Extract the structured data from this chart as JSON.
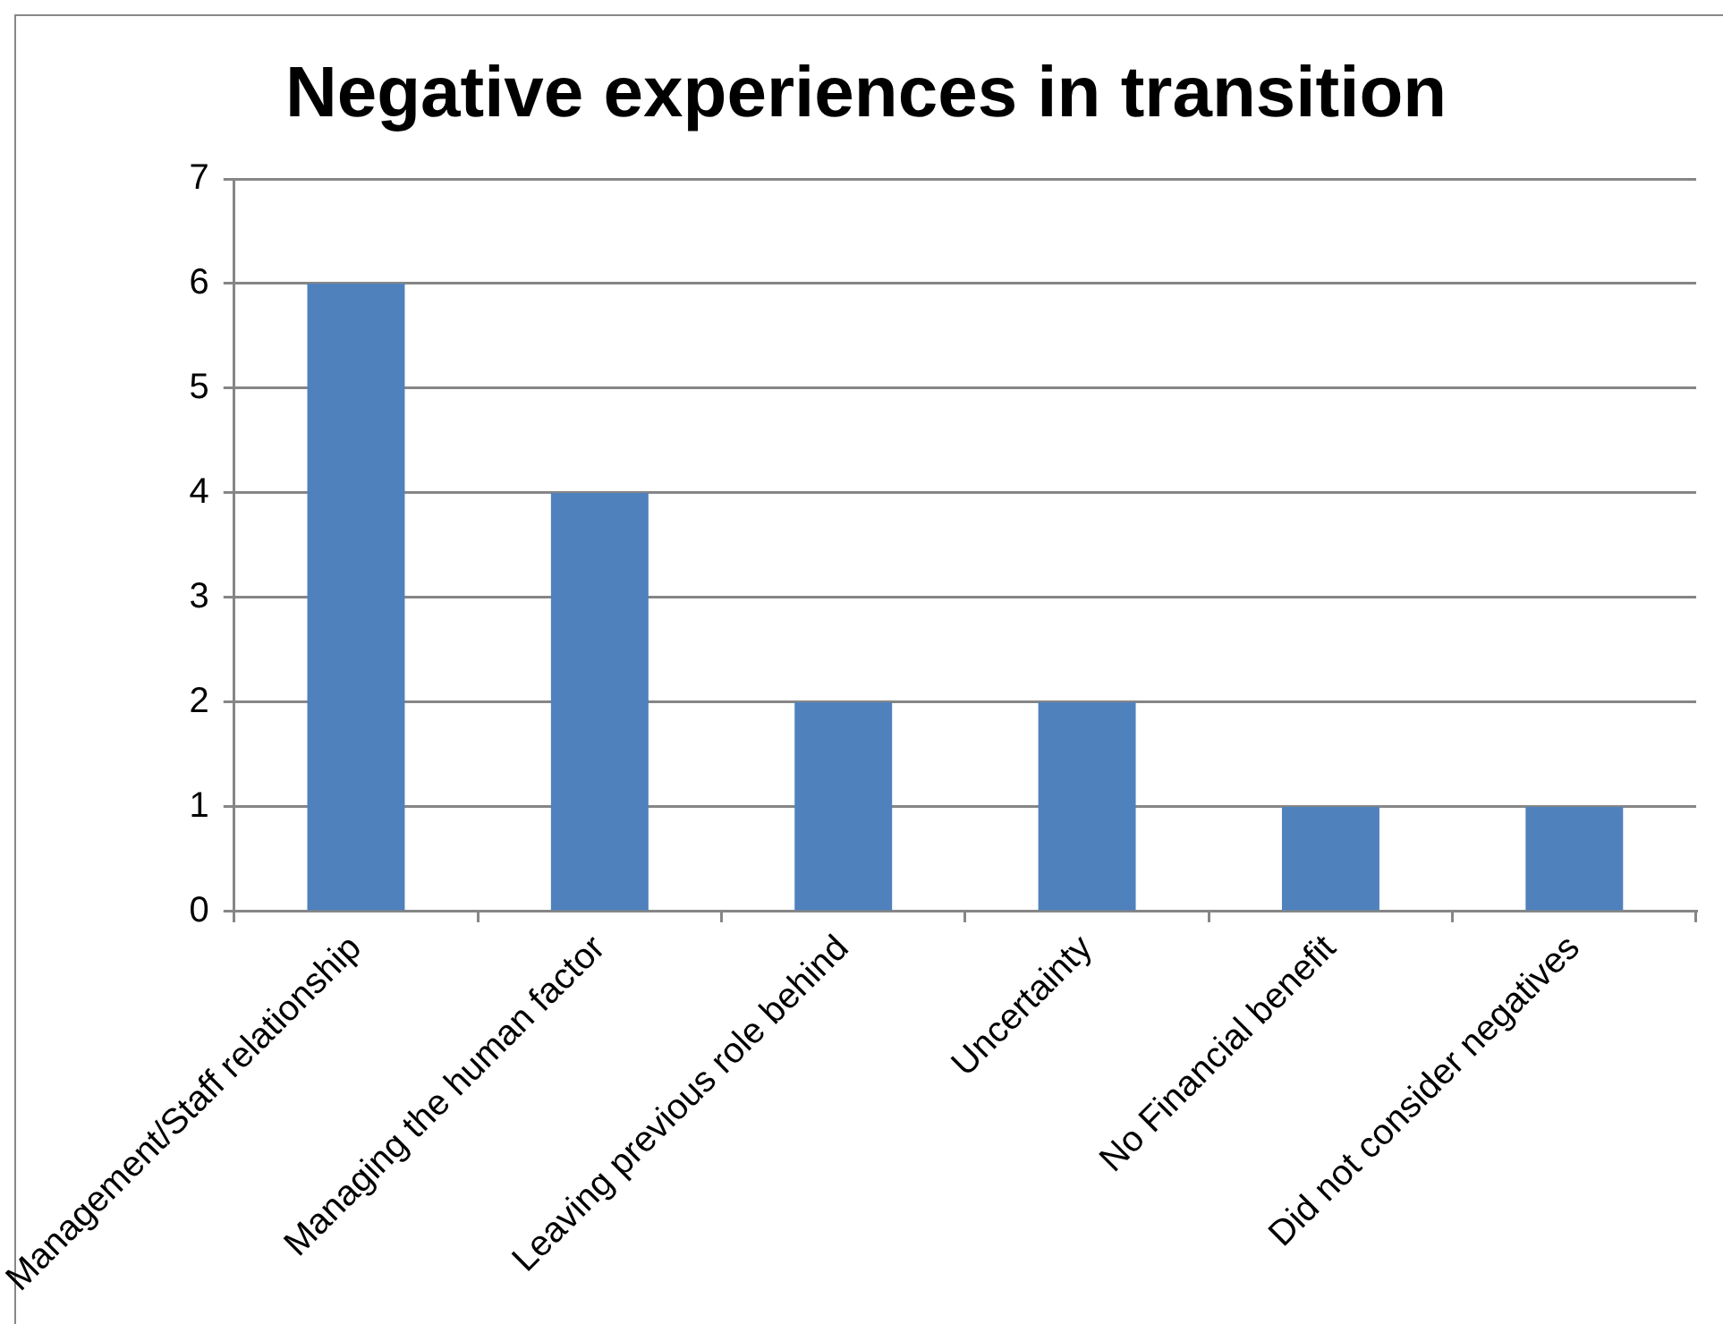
{
  "chart_data": {
    "type": "bar",
    "title": "Negative experiences in transition",
    "categories": [
      "Management/Staff relationship",
      "Managing the human factor",
      "Leaving previous role behind",
      "Uncertainty",
      "No Financial benefit",
      "Did not consider negatives"
    ],
    "values": [
      6,
      4,
      2,
      2,
      1,
      1
    ],
    "color": "#4f81bd",
    "ylim": [
      0,
      7
    ],
    "yticks": [
      0,
      1,
      2,
      3,
      4,
      5,
      6,
      7
    ],
    "grid": "y",
    "legend": false
  }
}
